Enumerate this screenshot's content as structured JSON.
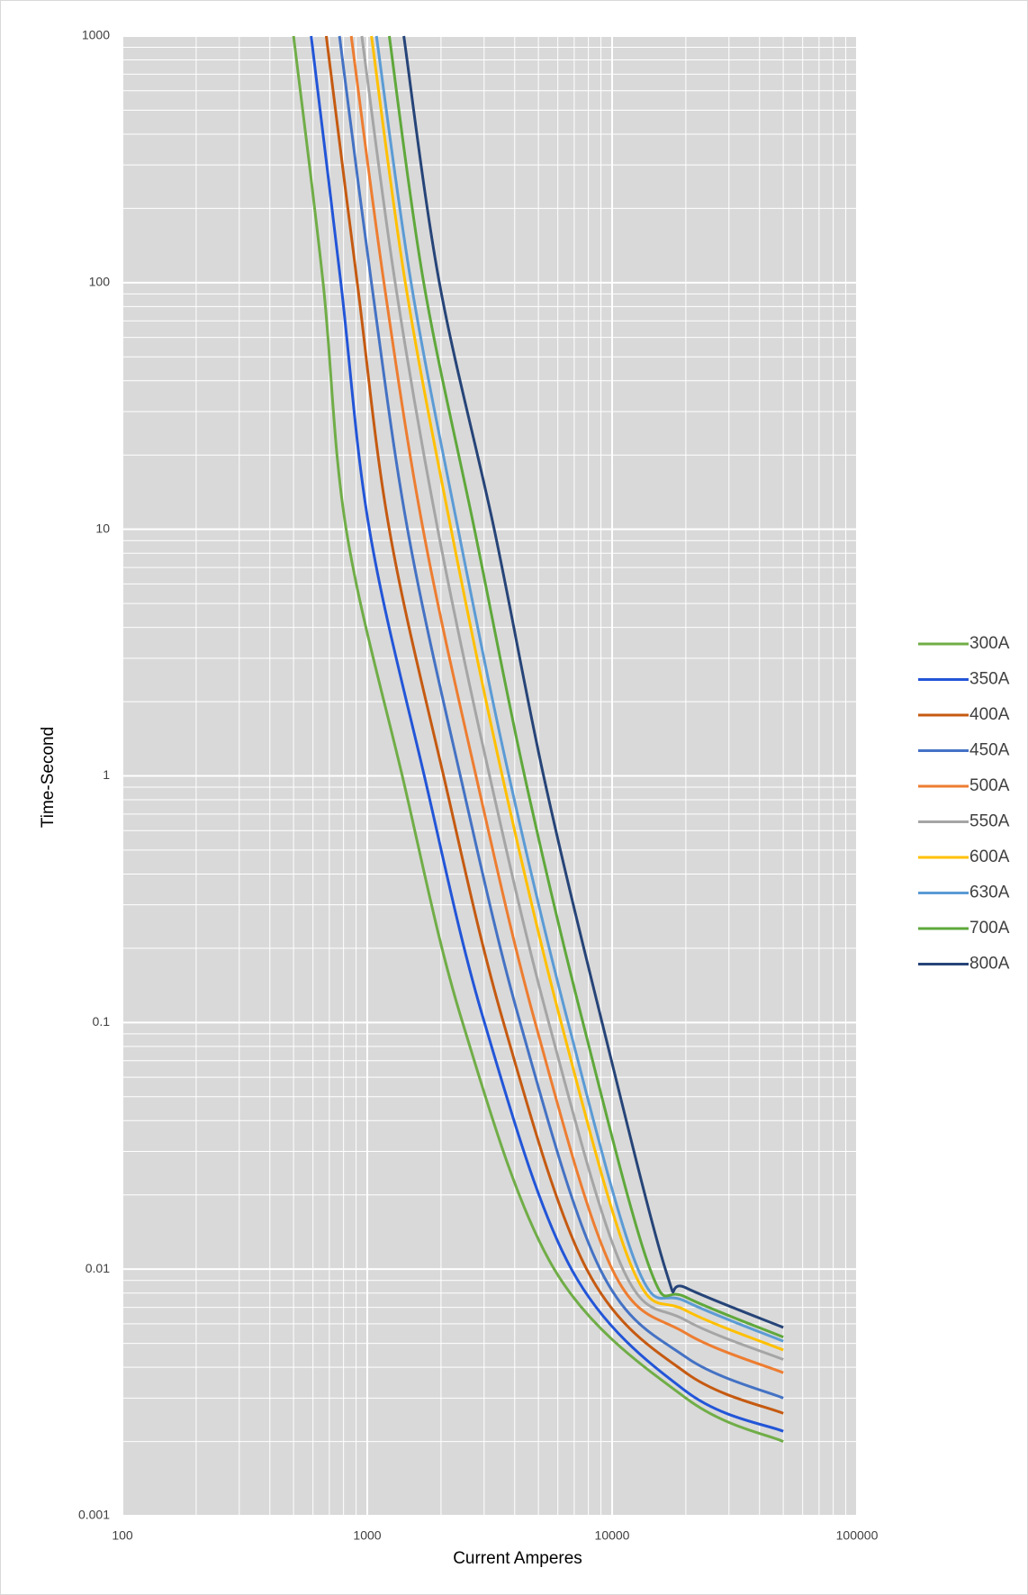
{
  "chart_data": {
    "type": "line",
    "x_label": "Current Amperes",
    "y_label": "Time-Second",
    "xlog": true,
    "ylog": true,
    "grid": true,
    "minor_grid": true,
    "legend": "right",
    "xlim": [
      100,
      100000
    ],
    "xticks": [
      100,
      1000,
      10000,
      100000
    ],
    "ylim": [
      0.001,
      1000
    ],
    "yticks": [
      0.001,
      0.01,
      0.1,
      1,
      10,
      100,
      1000
    ],
    "series": [
      {
        "name": "300A",
        "color": "#70ad47",
        "x": [
          500,
          660,
          820,
          1390,
          2450,
          5800,
          20000,
          50000
        ],
        "values": [
          1000,
          100,
          10,
          1,
          0.1,
          0.01,
          0.003,
          0.002
        ]
      },
      {
        "name": "350A",
        "color": "#2255d8",
        "x": [
          590,
          780,
          1020,
          1710,
          3010,
          6820,
          20000,
          50000
        ],
        "values": [
          1000,
          100,
          10,
          1,
          0.1,
          0.01,
          0.0032,
          0.0022
        ]
      },
      {
        "name": "400A",
        "color": "#c55a11",
        "x": [
          680,
          910,
          1230,
          2050,
          3600,
          7870,
          20000,
          50000
        ],
        "values": [
          1000,
          100,
          10,
          1,
          0.1,
          0.01,
          0.0038,
          0.0026
        ]
      },
      {
        "name": "450A",
        "color": "#4472c4",
        "x": [
          770,
          1040,
          1460,
          2400,
          4210,
          8930,
          20000,
          50000
        ],
        "values": [
          1000,
          100,
          10,
          1,
          0.1,
          0.01,
          0.0044,
          0.003
        ]
      },
      {
        "name": "500A",
        "color": "#ed7d31",
        "x": [
          860,
          1170,
          1690,
          2780,
          4850,
          10000,
          20000,
          50000
        ],
        "values": [
          1000,
          100,
          10,
          1,
          0.1,
          0.01,
          0.0055,
          0.0038
        ]
      },
      {
        "name": "550A",
        "color": "#a5a5a5",
        "x": [
          950,
          1300,
          1940,
          3160,
          5510,
          11070,
          20000,
          50000
        ],
        "values": [
          1000,
          100,
          10,
          1,
          0.1,
          0.01,
          0.0062,
          0.0043
        ]
      },
      {
        "name": "600A",
        "color": "#ffc000",
        "x": [
          1040,
          1430,
          2200,
          3560,
          6190,
          12130,
          20000,
          50000
        ],
        "values": [
          1000,
          100,
          10,
          1,
          0.1,
          0.01,
          0.0068,
          0.0047
        ]
      },
      {
        "name": "630A",
        "color": "#5b9bd5",
        "x": [
          1090,
          1510,
          2350,
          3790,
          6610,
          12760,
          20000,
          50000
        ],
        "values": [
          1000,
          100,
          10,
          1,
          0.1,
          0.01,
          0.0074,
          0.0051
        ]
      },
      {
        "name": "700A",
        "color": "#5fa83b",
        "x": [
          1230,
          1700,
          2740,
          4390,
          7600,
          14290,
          20000,
          50000
        ],
        "values": [
          1000,
          100,
          10,
          1,
          0.1,
          0.01,
          0.0077,
          0.0053
        ]
      },
      {
        "name": "800A",
        "color": "#264478",
        "x": [
          1410,
          1970,
          3300,
          5250,
          9100,
          16500,
          20000,
          50000
        ],
        "values": [
          1000,
          100,
          10,
          1,
          0.1,
          0.01,
          0.0084,
          0.0058
        ]
      }
    ]
  }
}
